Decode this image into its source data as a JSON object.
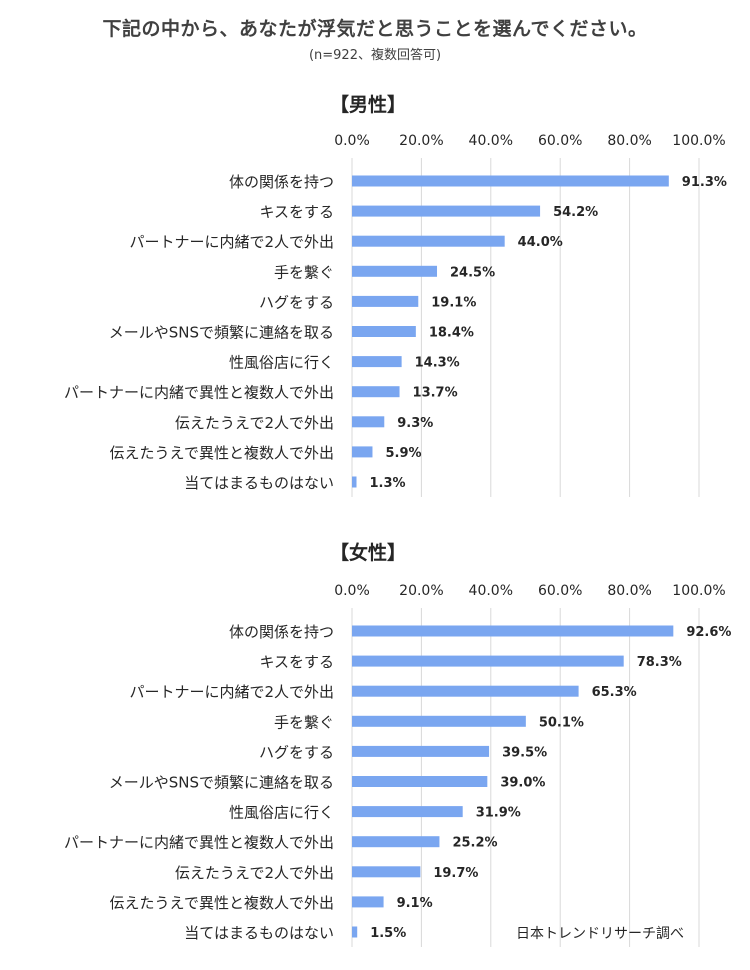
{
  "title": "下記の中から、あなたが浮気だと思うことを選んでください。",
  "subtitle": "(n=922、複数回答可)",
  "source": "日本トレンドリサーチ調べ",
  "colors": {
    "bar": "#7aa6f0",
    "grid": "#d9d9d9",
    "text": "#262626"
  },
  "chart_data": [
    {
      "type": "bar",
      "orientation": "horizontal",
      "title": "【男性】",
      "xlim": [
        0,
        100
      ],
      "ticks": [
        "0.0%",
        "20.0%",
        "40.0%",
        "60.0%",
        "80.0%",
        "100.0%"
      ],
      "grid": true,
      "categories": [
        "体の関係を持つ",
        "キスをする",
        "パートナーに内緒で2人で外出",
        "手を繋ぐ",
        "ハグをする",
        "メールやSNSで頻繁に連絡を取る",
        "性風俗店に行く",
        "パートナーに内緒で異性と複数人で外出",
        "伝えたうえで2人で外出",
        "伝えたうえで異性と複数人で外出",
        "当てはまるものはない"
      ],
      "values": [
        91.3,
        54.2,
        44.0,
        24.5,
        19.1,
        18.4,
        14.3,
        13.7,
        9.3,
        5.9,
        1.3
      ],
      "labels": [
        "91.3%",
        "54.2%",
        "44.0%",
        "24.5%",
        "19.1%",
        "18.4%",
        "14.3%",
        "13.7%",
        "9.3%",
        "5.9%",
        "1.3%"
      ]
    },
    {
      "type": "bar",
      "orientation": "horizontal",
      "title": "【女性】",
      "xlim": [
        0,
        100
      ],
      "ticks": [
        "0.0%",
        "20.0%",
        "40.0%",
        "60.0%",
        "80.0%",
        "100.0%"
      ],
      "grid": true,
      "categories": [
        "体の関係を持つ",
        "キスをする",
        "パートナーに内緒で2人で外出",
        "手を繋ぐ",
        "ハグをする",
        "メールやSNSで頻繁に連絡を取る",
        "性風俗店に行く",
        "パートナーに内緒で異性と複数人で外出",
        "伝えたうえで2人で外出",
        "伝えたうえで異性と複数人で外出",
        "当てはまるものはない"
      ],
      "values": [
        92.6,
        78.3,
        65.3,
        50.1,
        39.5,
        39.0,
        31.9,
        25.2,
        19.7,
        9.1,
        1.5
      ],
      "labels": [
        "92.6%",
        "78.3%",
        "65.3%",
        "50.1%",
        "39.5%",
        "39.0%",
        "31.9%",
        "25.2%",
        "19.7%",
        "9.1%",
        "1.5%"
      ]
    }
  ]
}
